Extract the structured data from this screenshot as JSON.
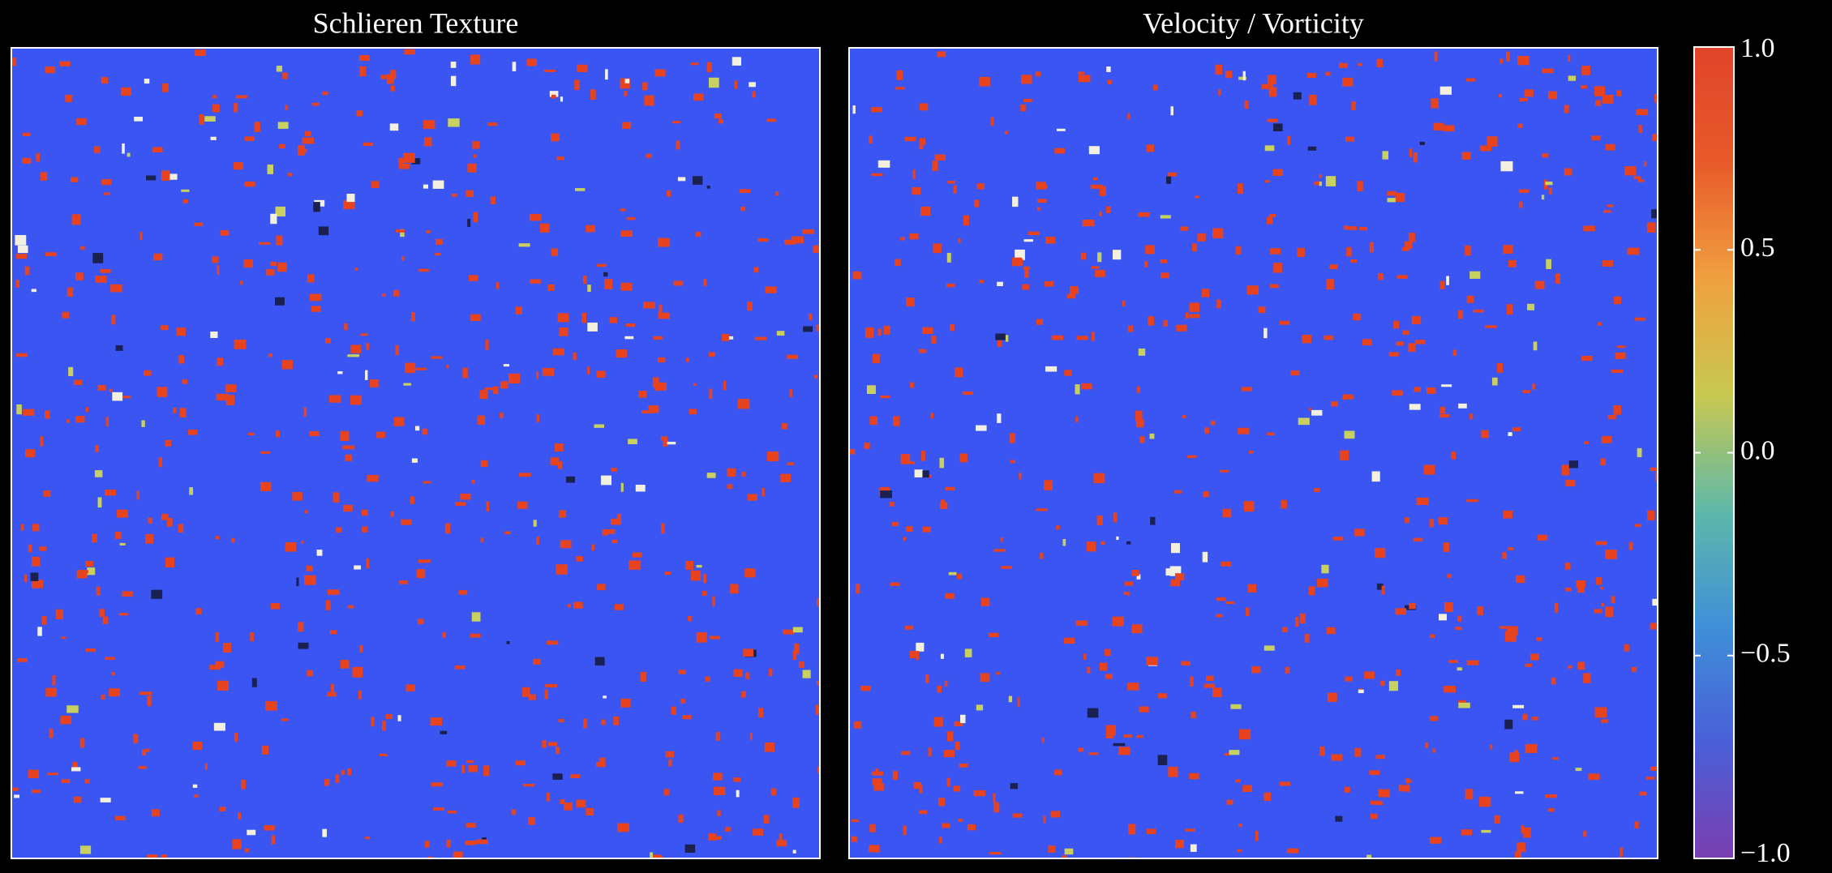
{
  "chart_data": [
    {
      "type": "heatmap",
      "title": "Schlieren Texture"
    },
    {
      "type": "heatmap",
      "title": "Velocity / Vorticity"
    }
  ],
  "colorbar": {
    "lim": [
      -1,
      1
    ],
    "ticks": [
      {
        "value": 1,
        "label": "1.0"
      },
      0.5,
      {
        "value": 0,
        "label": "0.0"
      },
      {
        "value": -0.5,
        "label": "−0.5"
      },
      {
        "value": -1,
        "label": "−1.0"
      }
    ],
    "colors": [
      "#7a3fb0",
      "#4a5fd8",
      "#3f8fd8",
      "#5fb8a8",
      "#c8c850",
      "#f0a040",
      "#e85a2a",
      "#e0442a"
    ]
  }
}
